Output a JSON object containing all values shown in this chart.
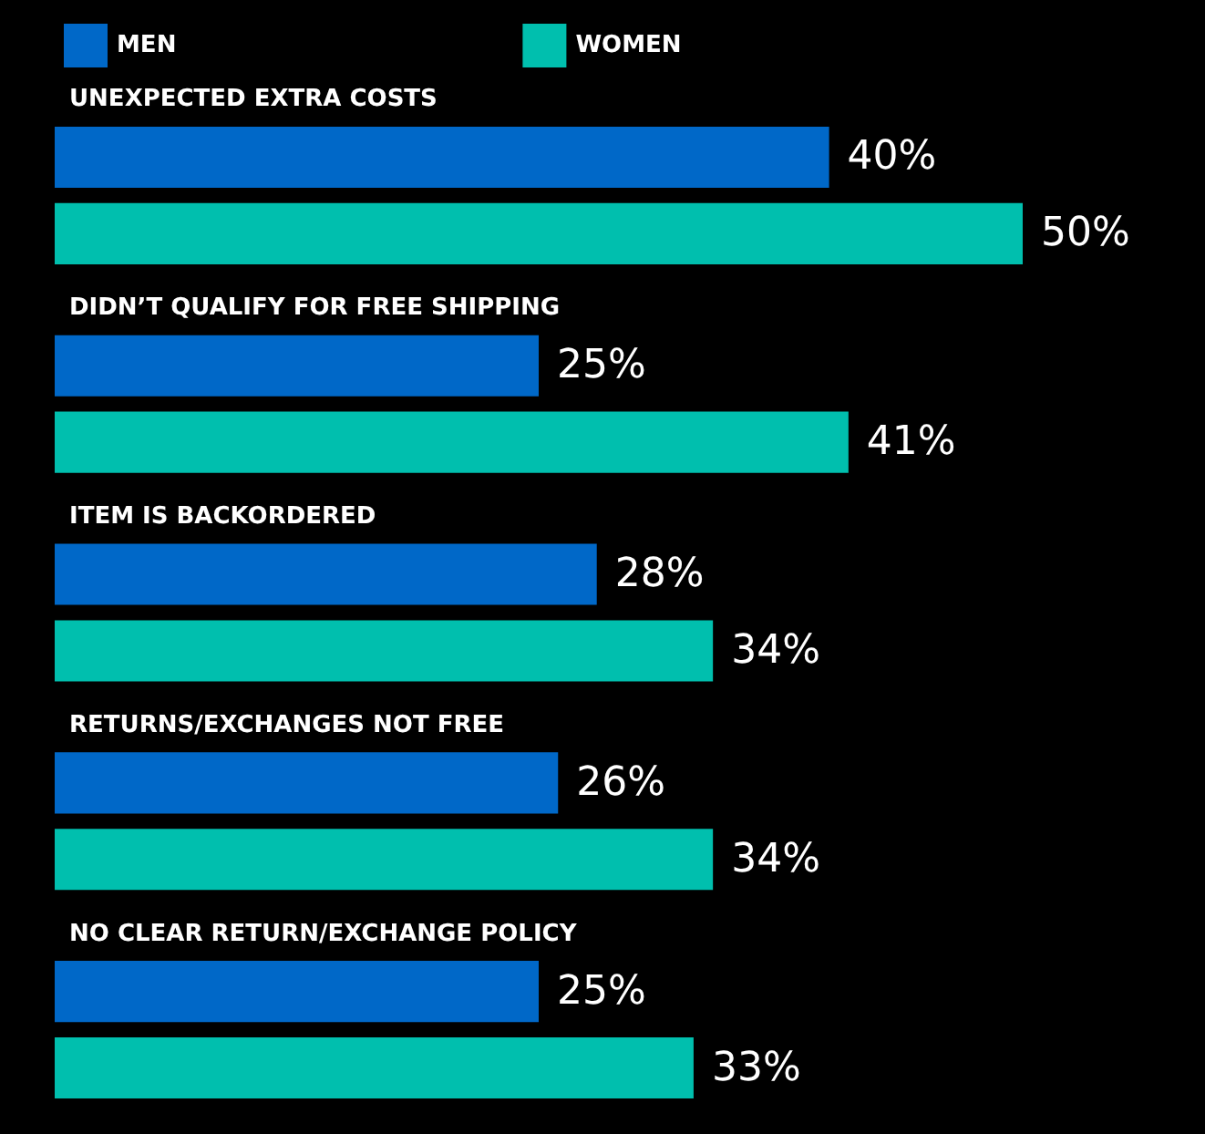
{
  "chart_data": {
    "type": "bar",
    "orientation": "horizontal",
    "categories": [
      "UNEXPECTED EXTRA COSTS",
      "DIDN’T QUALIFY FOR FREE SHIPPING",
      "ITEM IS BACKORDERED",
      "RETURNS/EXCHANGES NOT FREE",
      "NO CLEAR RETURN/EXCHANGE POLICY"
    ],
    "series": [
      {
        "name": "MEN",
        "color": "#0068c8",
        "values": [
          40,
          25,
          28,
          26,
          25
        ],
        "value_labels": [
          "40%",
          "25%",
          "28%",
          "26%",
          "25%"
        ]
      },
      {
        "name": "WOMEN",
        "color": "#00bfae",
        "values": [
          50,
          41,
          34,
          34,
          33
        ],
        "value_labels": [
          "50%",
          "41%",
          "34%",
          "34%",
          "33%"
        ]
      }
    ],
    "legend": "top left",
    "tick_labels": "y"
  }
}
